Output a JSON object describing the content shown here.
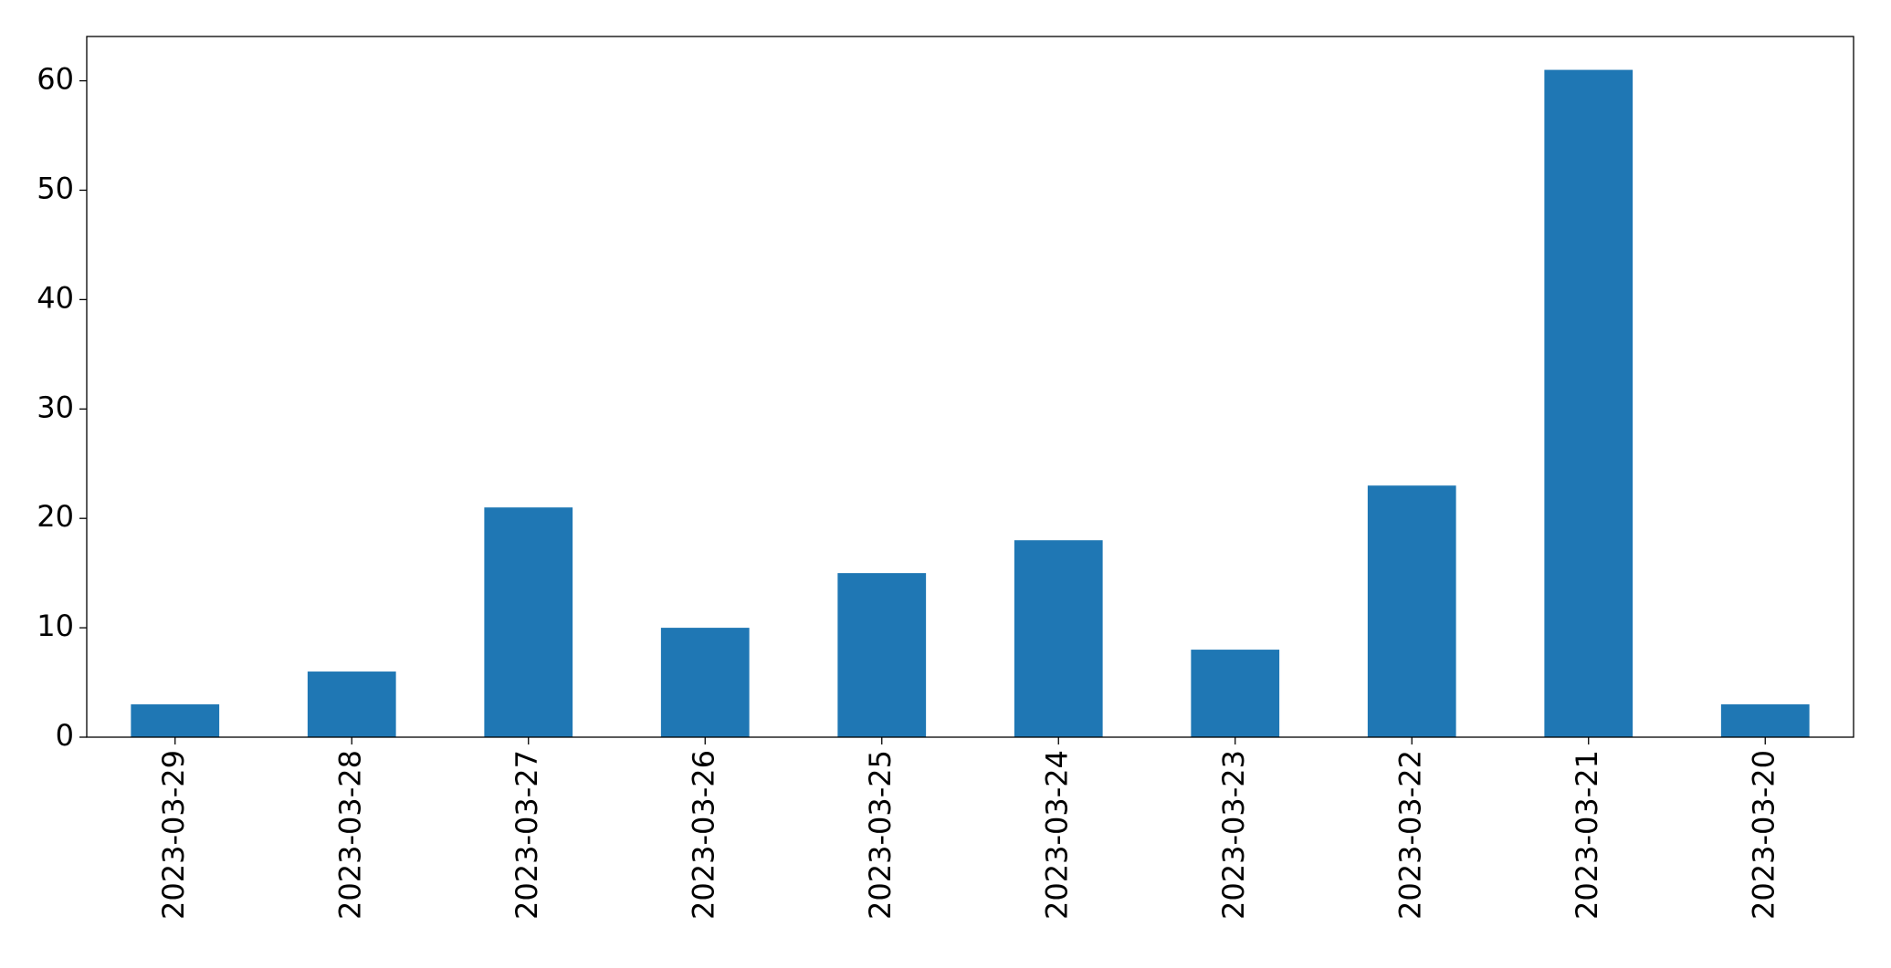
{
  "chart_data": {
    "type": "bar",
    "categories": [
      "2023-03-29",
      "2023-03-28",
      "2023-03-27",
      "2023-03-26",
      "2023-03-25",
      "2023-03-24",
      "2023-03-23",
      "2023-03-22",
      "2023-03-21",
      "2023-03-20"
    ],
    "values": [
      3,
      6,
      21,
      10,
      15,
      18,
      8,
      23,
      61,
      3
    ],
    "color": "#1f77b4",
    "ylim": [
      0,
      64.05
    ],
    "yticks": [
      0,
      10,
      20,
      30,
      40,
      50,
      60
    ],
    "grid": false
  }
}
